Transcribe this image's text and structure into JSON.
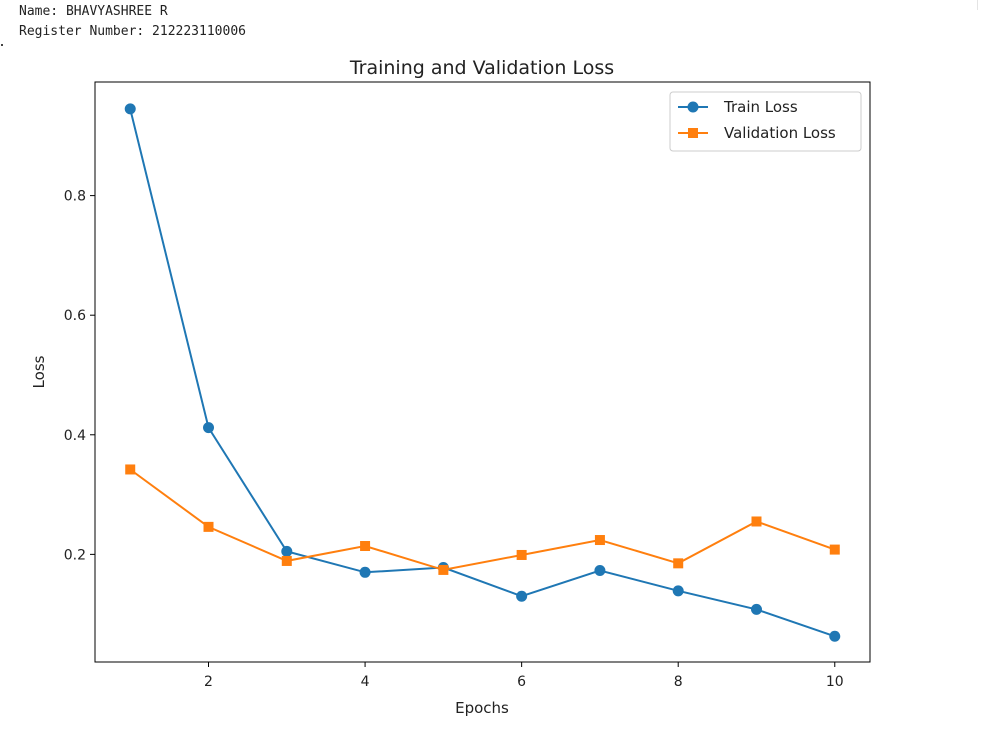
{
  "header": {
    "name_line": "Name: BHAVYASHREE R",
    "register_line": "Register Number: 212223110006"
  },
  "chart_data": {
    "type": "line",
    "title": "Training and Validation Loss",
    "xlabel": "Epochs",
    "ylabel": "Loss",
    "xlim": [
      0.55,
      10.45
    ],
    "ylim": [
      0.02,
      0.99
    ],
    "xticks": [
      2,
      4,
      6,
      8,
      10
    ],
    "yticks": [
      0.2,
      0.4,
      0.6,
      0.8
    ],
    "grid": false,
    "legend_position": "top-right",
    "x": [
      1,
      2,
      3,
      4,
      5,
      6,
      7,
      8,
      9,
      10
    ],
    "series": [
      {
        "name": "Train Loss",
        "marker": "circle",
        "color": "#1f77b4",
        "values": [
          0.945,
          0.412,
          0.205,
          0.17,
          0.178,
          0.13,
          0.173,
          0.139,
          0.108,
          0.063
        ]
      },
      {
        "name": "Validation Loss",
        "marker": "square",
        "color": "#ff7f0e",
        "values": [
          0.342,
          0.246,
          0.189,
          0.214,
          0.174,
          0.199,
          0.224,
          0.185,
          0.255,
          0.208
        ]
      }
    ]
  }
}
